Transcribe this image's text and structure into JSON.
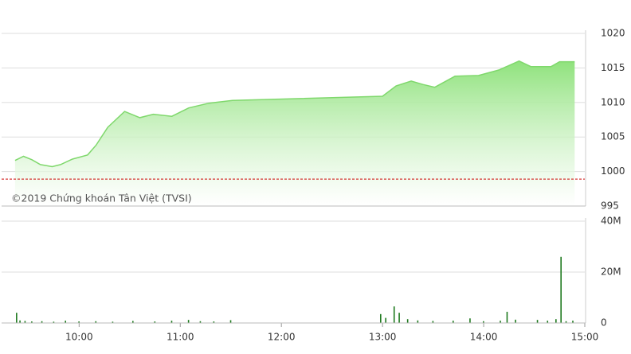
{
  "chart_data": [
    {
      "type": "area",
      "color": "#7fd86c",
      "fill_top": "#8fe27c",
      "annotation": "©2019 Chứng khoán Tân Việt (TVSI)",
      "reference_line": 998.9,
      "reference_color": "#cc0000",
      "x": [
        562,
        567,
        572,
        577,
        584,
        589,
        596,
        605,
        610,
        617,
        627,
        636,
        644,
        655,
        665,
        677,
        691,
        780,
        788,
        797,
        804,
        811,
        823,
        837,
        849,
        861,
        868,
        880,
        885,
        894
      ],
      "values": [
        1001.6,
        1002.2,
        1001.7,
        1001.0,
        1000.7,
        1001.0,
        1001.8,
        1002.4,
        1003.8,
        1006.4,
        1008.7,
        1007.8,
        1008.3,
        1008.0,
        1009.2,
        1009.9,
        1010.3,
        1010.9,
        1012.4,
        1013.1,
        1012.6,
        1012.2,
        1013.8,
        1013.9,
        1014.7,
        1016.0,
        1015.2,
        1015.2,
        1015.9,
        1015.9
      ],
      "xlim": [
        554,
        900
      ],
      "ylim": [
        995,
        1020
      ],
      "yticks": [
        995,
        1000,
        1005,
        1010,
        1015,
        1020
      ],
      "grid": true
    },
    {
      "type": "bar",
      "color": "#1f7a1f",
      "x": [
        563,
        565,
        568,
        572,
        578,
        585,
        592,
        600,
        610,
        620,
        632,
        645,
        655,
        665,
        672,
        680,
        690,
        779,
        782,
        787,
        790,
        795,
        801,
        810,
        822,
        832,
        840,
        850,
        854,
        859,
        872,
        878,
        883,
        886,
        889,
        893
      ],
      "values": [
        4000000,
        1000000,
        800000,
        600000,
        700000,
        500000,
        900000,
        600000,
        700000,
        500000,
        800000,
        600000,
        900000,
        1200000,
        700000,
        600000,
        1100000,
        3500000,
        2000000,
        6500000,
        4000000,
        1500000,
        1000000,
        800000,
        900000,
        1800000,
        700000,
        900000,
        4400000,
        1300000,
        1200000,
        900000,
        1500000,
        26000000,
        700000,
        900000
      ],
      "xlim": [
        554,
        900
      ],
      "ylim": [
        0,
        40000000
      ],
      "yticks": [
        0,
        {
          "value": 20000000,
          "label": "20M"
        },
        {
          "value": 40000000,
          "label": "40M"
        }
      ],
      "xticks": [
        {
          "value": 600,
          "label": "10:00"
        },
        {
          "value": 660,
          "label": "11:00"
        },
        {
          "value": 720,
          "label": "12:00"
        },
        {
          "value": 780,
          "label": "13:00"
        },
        {
          "value": 840,
          "label": "14:00"
        },
        {
          "value": 900,
          "label": "15:00"
        }
      ],
      "grid": true
    }
  ]
}
